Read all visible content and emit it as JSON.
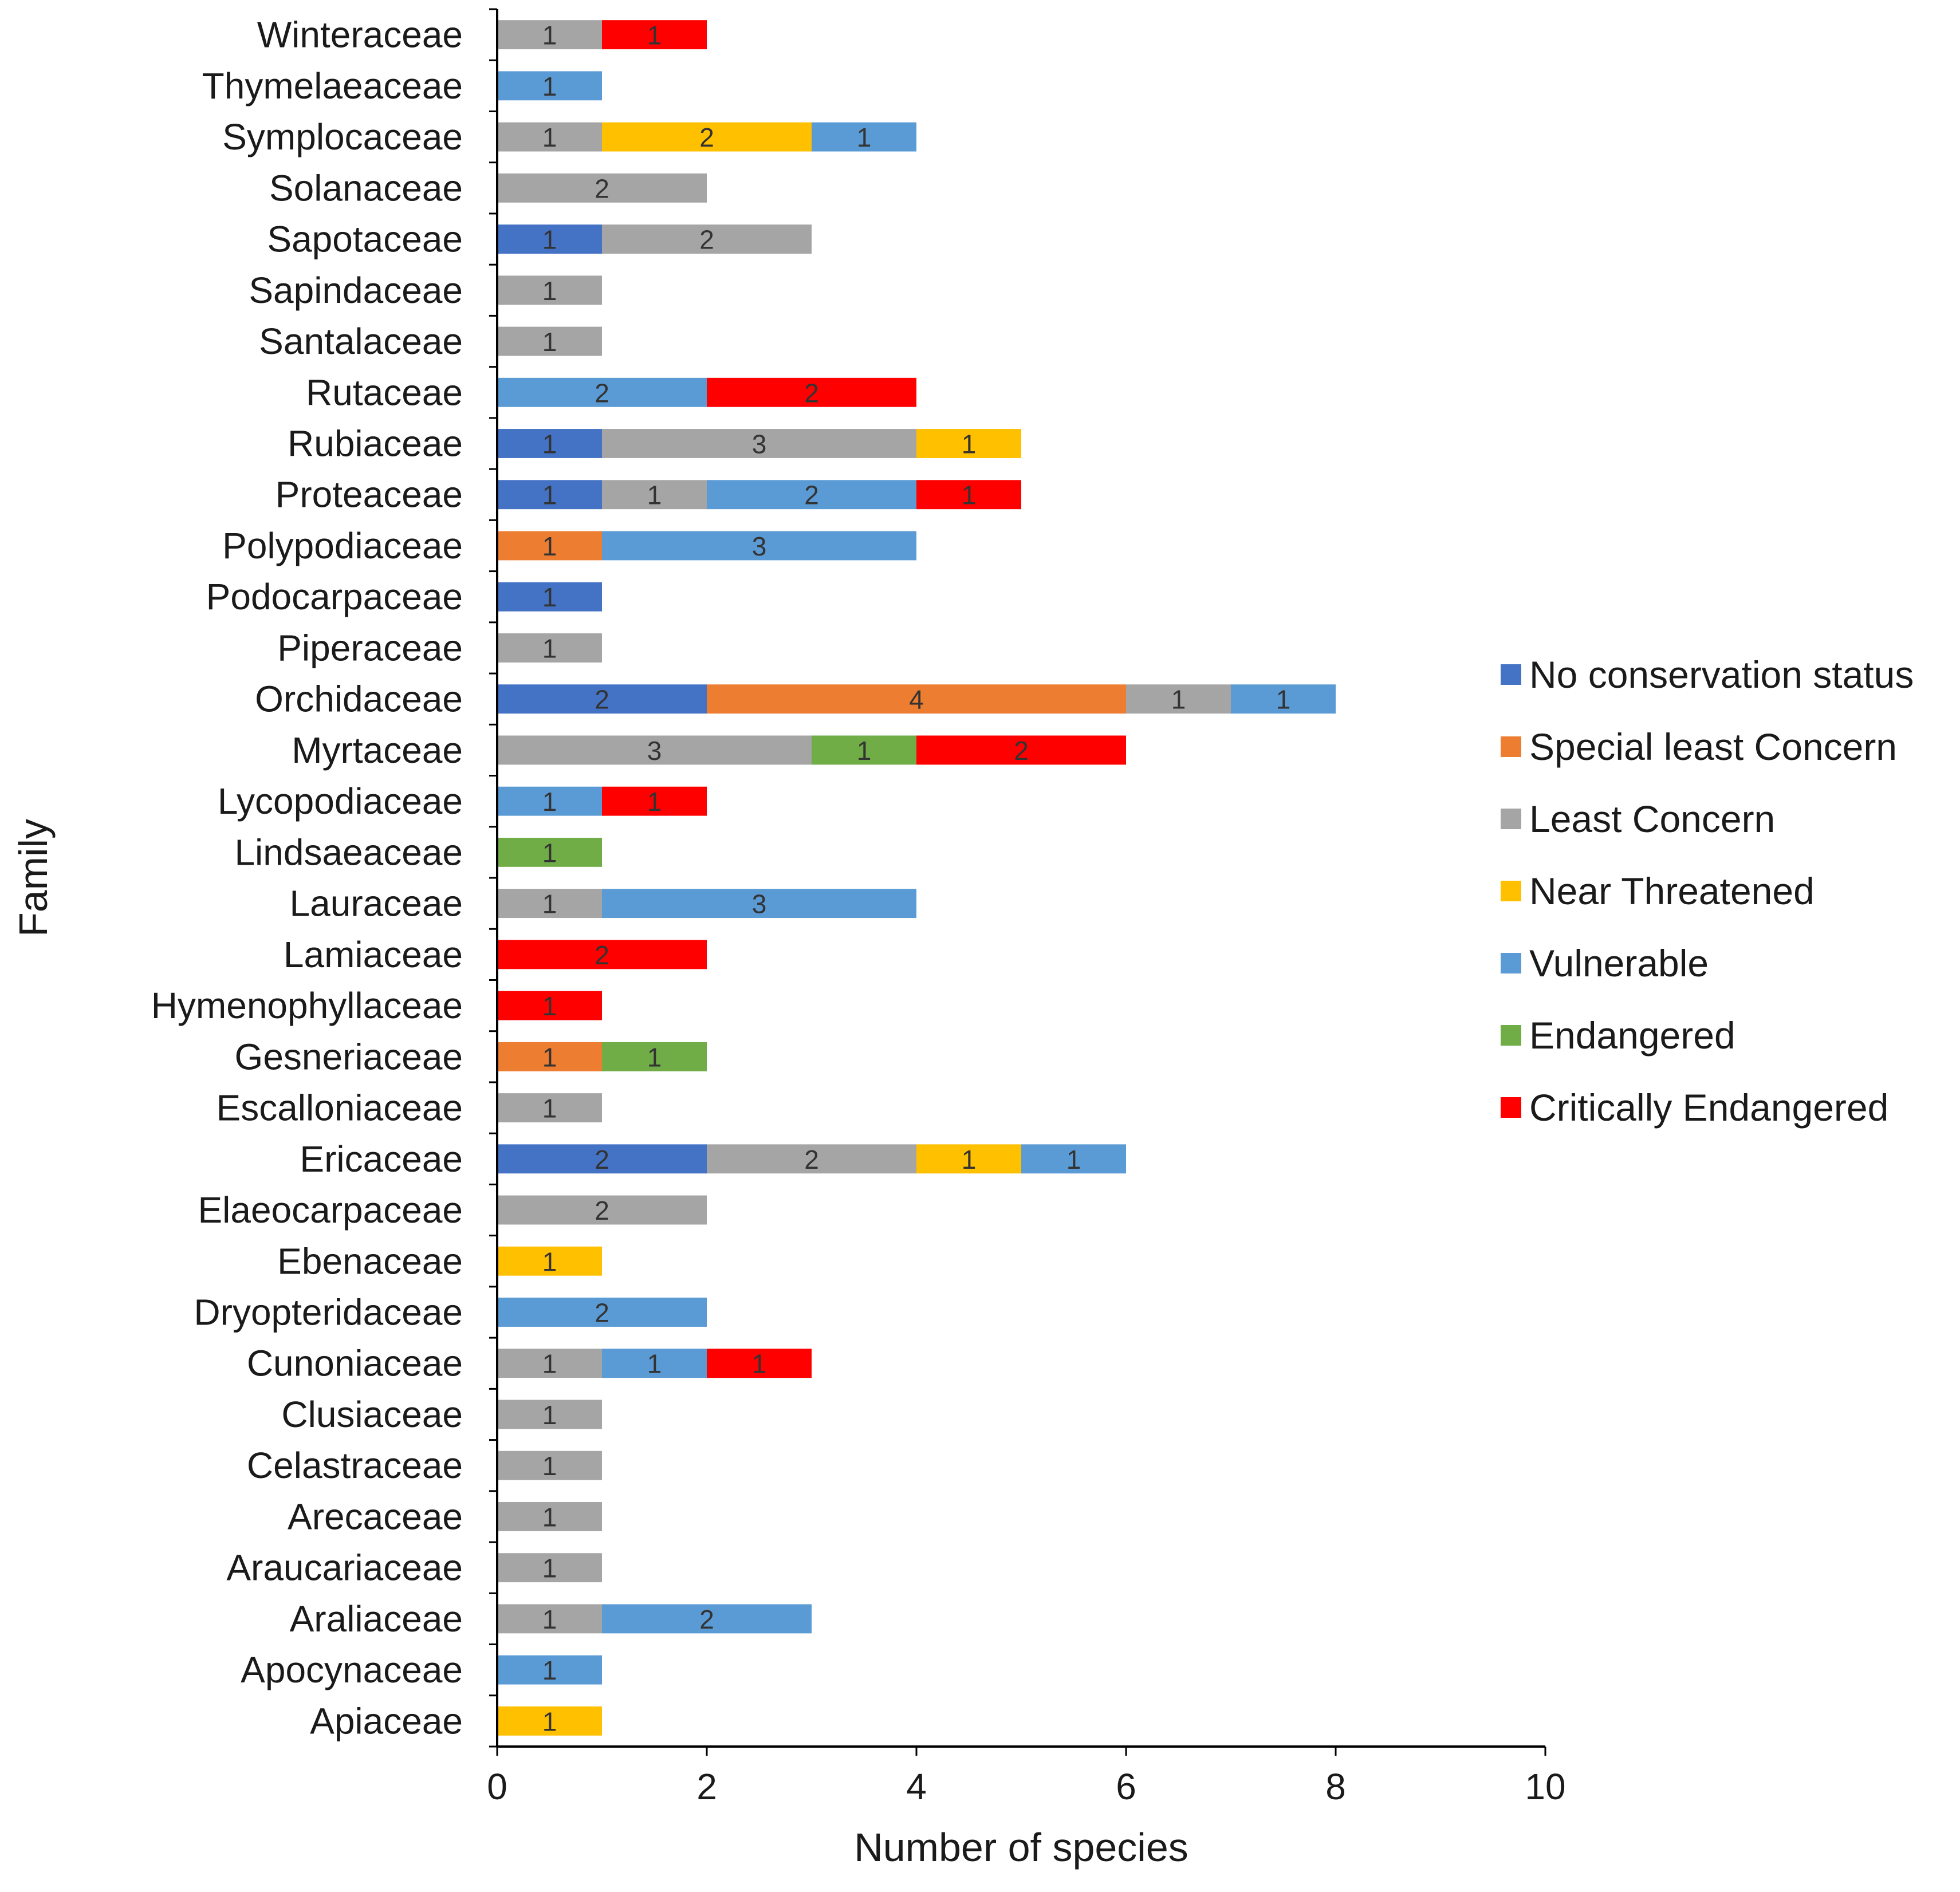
{
  "chart_data": {
    "type": "bar",
    "orientation": "horizontal",
    "stacked": true,
    "title": "",
    "xlabel": "Number of species",
    "ylabel": "Family",
    "xlim": [
      0,
      10
    ],
    "xticks": [
      0,
      2,
      4,
      6,
      8,
      10
    ],
    "grid": false,
    "legend_position": "right",
    "categories": [
      "Winteraceae",
      "Thymelaeaceae",
      "Symplocaceae",
      "Solanaceae",
      "Sapotaceae",
      "Sapindaceae",
      "Santalaceae",
      "Rutaceae",
      "Rubiaceae",
      "Proteaceae",
      "Polypodiaceae",
      "Podocarpaceae",
      "Piperaceae",
      "Orchidaceae",
      "Myrtaceae",
      "Lycopodiaceae",
      "Lindsaeaceae",
      "Lauraceae",
      "Lamiaceae",
      "Hymenophyllaceae",
      "Gesneriaceae",
      "Escalloniaceae",
      "Ericaceae",
      "Elaeocarpaceae",
      "Ebenaceae",
      "Dryopteridaceae",
      "Cunoniaceae",
      "Clusiaceae",
      "Celastraceae",
      "Arecaceae",
      "Araucariaceae",
      "Araliaceae",
      "Apocynaceae",
      "Apiaceae"
    ],
    "series": [
      {
        "name": "No conservation status",
        "color": "#4472C4",
        "values": [
          0,
          0,
          0,
          0,
          1,
          0,
          0,
          0,
          1,
          1,
          0,
          1,
          0,
          2,
          0,
          0,
          0,
          0,
          0,
          0,
          0,
          0,
          2,
          0,
          0,
          0,
          0,
          0,
          0,
          0,
          0,
          0,
          0,
          0
        ]
      },
      {
        "name": "Special least Concern",
        "color": "#ED7D31",
        "values": [
          0,
          0,
          0,
          0,
          0,
          0,
          0,
          0,
          0,
          0,
          1,
          0,
          0,
          4,
          0,
          0,
          0,
          0,
          0,
          0,
          1,
          0,
          0,
          0,
          0,
          0,
          0,
          0,
          0,
          0,
          0,
          0,
          0,
          0
        ]
      },
      {
        "name": "Least Concern",
        "color": "#A5A5A5",
        "values": [
          1,
          0,
          1,
          2,
          2,
          1,
          1,
          0,
          3,
          1,
          0,
          0,
          1,
          1,
          3,
          0,
          0,
          1,
          0,
          0,
          0,
          1,
          2,
          2,
          0,
          0,
          1,
          1,
          1,
          1,
          1,
          1,
          0,
          0
        ]
      },
      {
        "name": "Near Threatened",
        "color": "#FFC000",
        "values": [
          0,
          0,
          2,
          0,
          0,
          0,
          0,
          0,
          1,
          0,
          0,
          0,
          0,
          0,
          0,
          0,
          0,
          0,
          0,
          0,
          0,
          0,
          1,
          0,
          1,
          0,
          0,
          0,
          0,
          0,
          0,
          0,
          0,
          1
        ]
      },
      {
        "name": "Vulnerable",
        "color": "#5B9BD5",
        "values": [
          0,
          1,
          1,
          0,
          0,
          0,
          0,
          2,
          0,
          2,
          3,
          0,
          0,
          1,
          0,
          1,
          0,
          3,
          0,
          0,
          0,
          0,
          1,
          0,
          0,
          2,
          1,
          0,
          0,
          0,
          0,
          2,
          1,
          0
        ]
      },
      {
        "name": "Endangered",
        "color": "#70AD47",
        "values": [
          0,
          0,
          0,
          0,
          0,
          0,
          0,
          0,
          0,
          0,
          0,
          0,
          0,
          0,
          1,
          0,
          1,
          0,
          0,
          0,
          1,
          0,
          0,
          0,
          0,
          0,
          0,
          0,
          0,
          0,
          0,
          0,
          0,
          0
        ]
      },
      {
        "name": "Critically Endangered",
        "color": "#FF0000",
        "values": [
          1,
          0,
          0,
          0,
          0,
          0,
          0,
          2,
          0,
          1,
          0,
          0,
          0,
          0,
          2,
          1,
          0,
          0,
          2,
          1,
          0,
          0,
          0,
          0,
          0,
          0,
          1,
          0,
          0,
          0,
          0,
          0,
          0,
          0
        ]
      }
    ]
  }
}
